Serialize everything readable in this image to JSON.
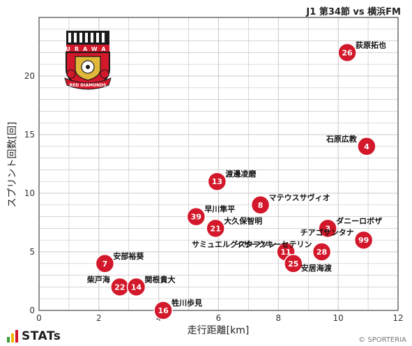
{
  "header": {
    "match_title": "J1 第34節 vs 横浜FM"
  },
  "footer": {
    "brand": "STATs",
    "copyright": "© SPORTERIA"
  },
  "logo": {
    "club_text": "RED DIAMONDS",
    "brand_letters": "URAWA",
    "colors": {
      "red": "#d2182a",
      "black": "#1a1a1a",
      "gold": "#e0b83a",
      "white": "#ffffff"
    }
  },
  "colors": {
    "marker": "#d2182a",
    "grid": "#c8c8c8",
    "axis": "#222222",
    "stats_bars": [
      "#3a9b3a",
      "#f2b705",
      "#d2182a"
    ]
  },
  "chart_data": {
    "type": "scatter",
    "title": "",
    "xlabel": "走行距離[km]",
    "ylabel": "スプリント回数[回]",
    "xlim": [
      0,
      12
    ],
    "ylim": [
      0,
      25
    ],
    "xticks": [
      0,
      2,
      4,
      6,
      8,
      10,
      12
    ],
    "yticks": [
      0,
      5,
      10,
      15,
      20
    ],
    "grid": true,
    "points": [
      {
        "number": "26",
        "name": "荻原拓也",
        "x": 10.3,
        "y": 22,
        "label_side": "right"
      },
      {
        "number": "4",
        "name": "石原広教",
        "x": 10.95,
        "y": 14,
        "label_side": "left"
      },
      {
        "number": "13",
        "name": "渡邊凌磨",
        "x": 5.95,
        "y": 11,
        "label_side": "right"
      },
      {
        "number": "8",
        "name": "マテウスサヴィオ",
        "x": 7.4,
        "y": 9,
        "label_side": "right"
      },
      {
        "number": "39",
        "name": "早川隼平",
        "x": 5.25,
        "y": 8,
        "label_side": "right"
      },
      {
        "number": "21",
        "name": "大久保智明",
        "x": 5.9,
        "y": 7,
        "label_side": "right"
      },
      {
        "number": "3",
        "name": "ダニーロボザ",
        "x": 9.65,
        "y": 7,
        "label_side": "right"
      },
      {
        "number": "99",
        "name": "チアゴサンタナ",
        "x": 10.85,
        "y": 6,
        "label_side": "left"
      },
      {
        "number": "11",
        "name": "サミュエルグスタフソン",
        "x": 8.25,
        "y": 5,
        "label_side": "left"
      },
      {
        "number": "28",
        "name": "イサークキーセテリン",
        "x": 9.45,
        "y": 5,
        "label_side": "left"
      },
      {
        "number": "25",
        "name": "安居海渡",
        "x": 8.5,
        "y": 4,
        "label_side": "right-low"
      },
      {
        "number": "7",
        "name": "安部裕葵",
        "x": 2.2,
        "y": 4,
        "label_side": "right"
      },
      {
        "number": "22",
        "name": "柴戸海",
        "x": 2.7,
        "y": 2,
        "label_side": "left"
      },
      {
        "number": "14",
        "name": "関根貴大",
        "x": 3.25,
        "y": 2,
        "label_side": "right"
      },
      {
        "number": "16",
        "name": "牲川歩見",
        "x": 4.15,
        "y": 0,
        "label_side": "right"
      }
    ]
  }
}
